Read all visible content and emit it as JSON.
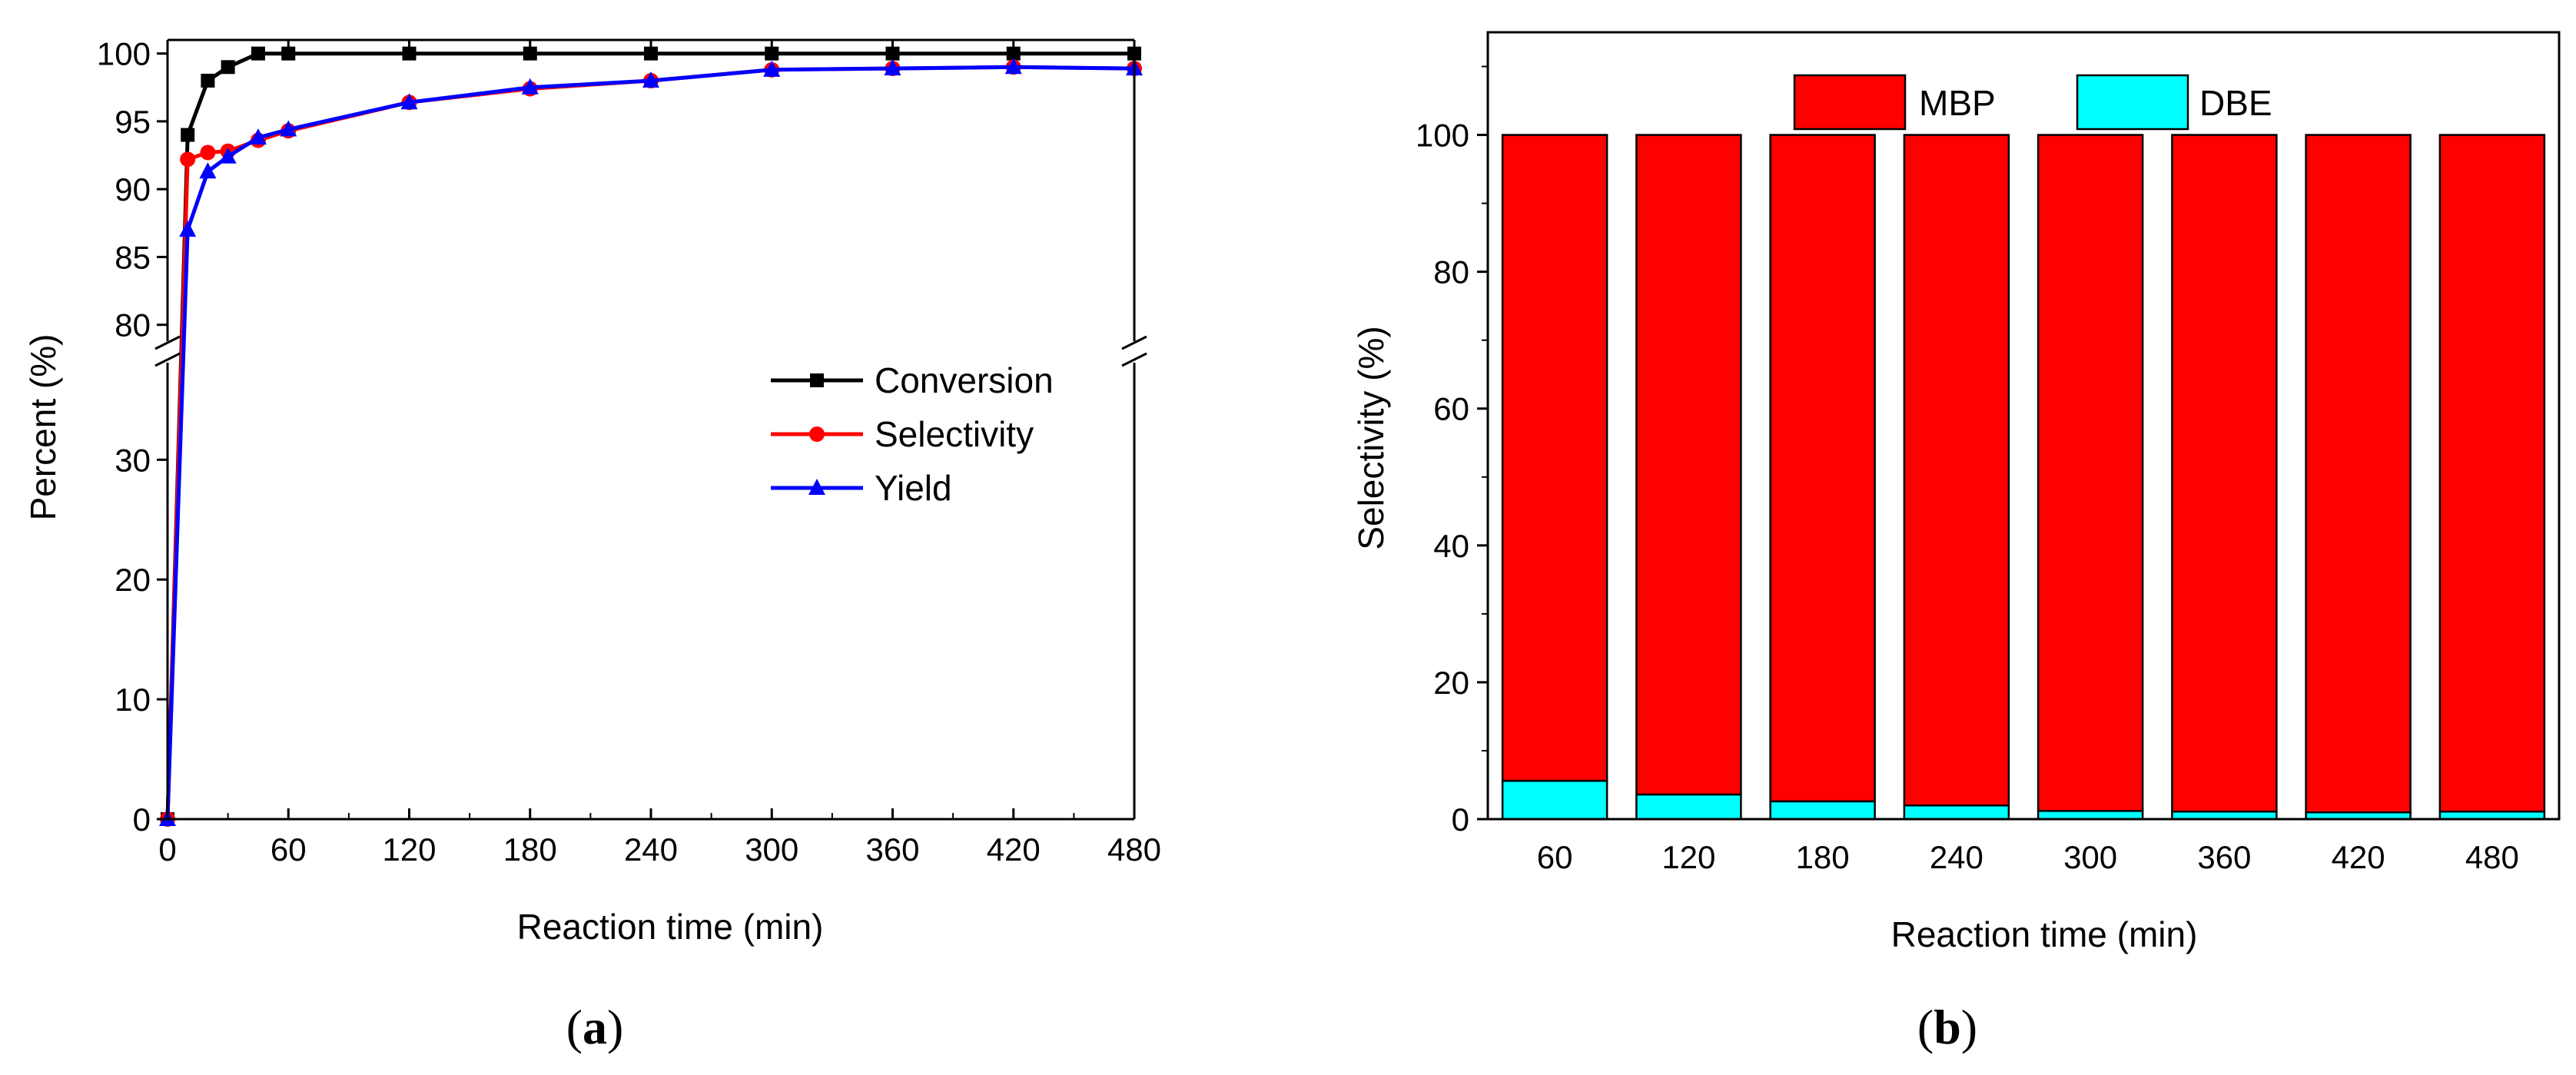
{
  "chart_data": [
    {
      "panel_label": "a",
      "type": "line",
      "title": "",
      "xlabel": "Reaction time (min)",
      "ylabel": "Percent (%)",
      "xlim": [
        0,
        480
      ],
      "ylim_lower": [
        0,
        39
      ],
      "ylim_upper": [
        78,
        101
      ],
      "axis_break": true,
      "x_ticks": [
        0,
        60,
        120,
        180,
        240,
        300,
        360,
        420,
        480
      ],
      "y_ticks_lower": [
        0,
        10,
        20,
        30
      ],
      "y_ticks_upper": [
        80,
        85,
        90,
        95,
        100
      ],
      "legend_position": "center-right",
      "series": [
        {
          "name": "Conversion",
          "color": "#000000",
          "marker": "square",
          "x": [
            0,
            10,
            20,
            30,
            45,
            60,
            120,
            180,
            240,
            300,
            360,
            420,
            480
          ],
          "y": [
            0,
            94,
            98,
            99,
            100,
            100,
            100,
            100,
            100,
            100,
            100,
            100,
            100
          ]
        },
        {
          "name": "Selectivity",
          "color": "#ff0000",
          "marker": "circle",
          "x": [
            0,
            10,
            20,
            30,
            45,
            60,
            120,
            180,
            240,
            300,
            360,
            420,
            480
          ],
          "y": [
            0,
            92.2,
            92.7,
            92.8,
            93.6,
            94.3,
            96.4,
            97.4,
            98,
            98.8,
            98.9,
            99,
            98.9
          ]
        },
        {
          "name": "Yield",
          "color": "#0000ff",
          "marker": "triangle",
          "x": [
            0,
            10,
            20,
            30,
            45,
            60,
            120,
            180,
            240,
            300,
            360,
            420,
            480
          ],
          "y": [
            0,
            87,
            91.3,
            92.4,
            93.8,
            94.4,
            96.4,
            97.5,
            98,
            98.8,
            98.9,
            99,
            98.9
          ]
        }
      ]
    },
    {
      "panel_label": "b",
      "type": "bar",
      "stacked": true,
      "title": "",
      "xlabel": "Reaction time (min)",
      "ylabel": "Selectivity (%)",
      "ylim": [
        0,
        115
      ],
      "y_ticks": [
        0,
        20,
        40,
        60,
        80,
        100
      ],
      "categories": [
        "60",
        "120",
        "180",
        "240",
        "300",
        "360",
        "420",
        "480"
      ],
      "legend_position": "top",
      "series": [
        {
          "name": "DBE",
          "color": "#00ffff",
          "values": [
            5.6,
            3.6,
            2.6,
            2.0,
            1.2,
            1.1,
            1.0,
            1.1
          ]
        },
        {
          "name": "MBP",
          "color": "#ff0000",
          "values": [
            94.4,
            96.4,
            97.4,
            98.0,
            98.8,
            98.9,
            99.0,
            98.9
          ]
        }
      ]
    }
  ]
}
